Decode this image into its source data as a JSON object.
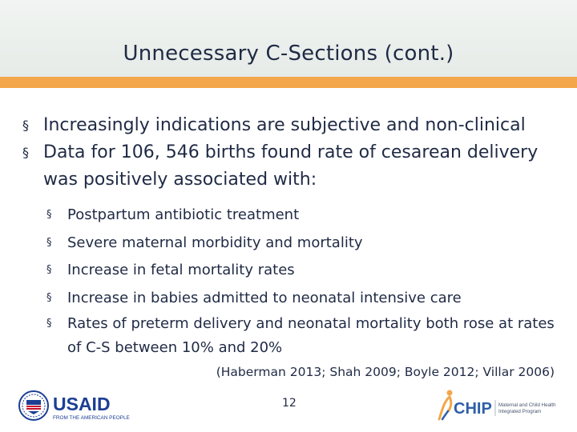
{
  "slide": {
    "title": "Unnecessary C-Sections (cont.)",
    "bullets": [
      "Increasingly indications are subjective and non-clinical",
      "Data for 106, 546 births found rate of cesarean delivery was positively associated with:"
    ],
    "sub_bullets": [
      "Postpartum antibiotic treatment",
      "Severe maternal morbidity and mortality",
      "Increase in fetal mortality rates",
      "Increase in babies admitted to neonatal intensive care",
      "Rates of preterm delivery and neonatal mortality both rose at rates of C-S between 10% and 20%"
    ],
    "bullet_glyph": "§",
    "citation": "(Haberman 2013; Shah 2009; Boyle 2012; Villar 2006)",
    "page_number": "12"
  },
  "footer": {
    "usaid": {
      "wordmark": "USAID",
      "tagline": "FROM THE AMERICAN PEOPLE"
    },
    "chip": {
      "wordmark": "CHIP",
      "tagline_line1": "Maternal and Child Health",
      "tagline_line2": "Integrated Program"
    }
  },
  "colors": {
    "title": "#1f2a44",
    "accent_bar": "#f3a64a",
    "usaid_blue": "#1c3f94",
    "usaid_red": "#c8102e",
    "chip_orange": "#f3a64a"
  }
}
